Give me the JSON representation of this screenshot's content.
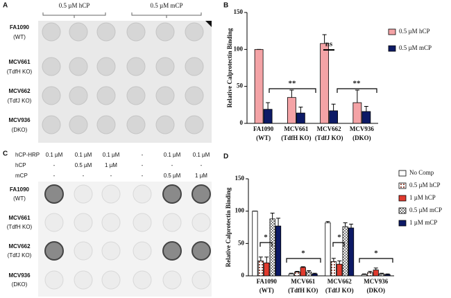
{
  "panel_a": {
    "label": "A",
    "groups": [
      "0.5 µM hCP",
      "0.5 µM mCP"
    ],
    "rows": [
      [
        "FA1090",
        "(WT)"
      ],
      [
        "MCV661",
        "(TdfH KO)"
      ],
      [
        "MCV662",
        "(TdfJ KO)"
      ],
      [
        "MCV936",
        "(DKO)"
      ]
    ]
  },
  "panel_c": {
    "label": "C",
    "conditions": [
      {
        "name": "hCP-HRP",
        "cells": [
          "0.1 µM",
          "0.1 µM",
          "0.1 µM",
          "-",
          "0.1 µM",
          "0.1 µM"
        ]
      },
      {
        "name": "hCP",
        "cells": [
          "-",
          "0.5 µM",
          "1 µM",
          "-",
          "-",
          "-"
        ]
      },
      {
        "name": "mCP",
        "cells": [
          "-",
          "-",
          "-",
          "-",
          "0.5 µM",
          "1 µM"
        ]
      }
    ],
    "rows": [
      [
        "FA1090",
        "(WT)"
      ],
      [
        "MCV661",
        "(TdfH KO)"
      ],
      [
        "MCV662",
        "(TdfJ KO)"
      ],
      [
        "MCV936",
        "(DKO)"
      ]
    ]
  },
  "chart_data": [
    {
      "type": "bar",
      "panel": "B",
      "ylabel": "Relative  Calprotectin Binding",
      "categories": [
        [
          "FA1090",
          "(WT)"
        ],
        [
          "MCV661",
          "(TdfH  KO)"
        ],
        [
          "MCV662",
          "(TdfJ KO)"
        ],
        [
          "MCV936",
          "(DKO)"
        ]
      ],
      "series": [
        {
          "name": "0.5 µM hCP",
          "color": "#f4a3a6",
          "values": [
            100,
            35,
            108,
            28
          ],
          "errors": [
            0,
            10,
            12,
            17
          ]
        },
        {
          "name": "0.5 µM mCP",
          "color": "#0d1a66",
          "values": [
            19,
            14,
            17,
            16
          ],
          "errors": [
            9,
            8,
            9,
            7
          ]
        }
      ],
      "annotations": [
        "ns",
        "**",
        "**"
      ],
      "ylim": [
        0,
        150
      ],
      "yticks": [
        0,
        50,
        100,
        150
      ],
      "legend": "right"
    },
    {
      "type": "bar",
      "panel": "D",
      "ylabel": "Relative  Calprotectin Binding",
      "categories": [
        [
          "FA1090",
          "(WT)"
        ],
        [
          "MCV661",
          "(TdfH KO)"
        ],
        [
          "MCV662",
          "(TdfJ  KO)"
        ],
        [
          "MCV936",
          "(DKO)"
        ]
      ],
      "series": [
        {
          "name": "No Comp",
          "color": "#ffffff",
          "values": [
            100,
            3,
            82,
            2
          ],
          "errors": [
            0,
            1,
            2,
            1
          ]
        },
        {
          "name": "0.5 µM hCP",
          "color": "#8b3a2a",
          "pattern": "dots",
          "values": [
            23,
            6,
            22,
            5
          ],
          "errors": [
            6,
            1,
            5,
            2
          ]
        },
        {
          "name": "1 µM hCP",
          "color": "#e03a2e",
          "values": [
            20,
            13,
            18,
            9
          ],
          "errors": [
            9,
            1,
            5,
            3
          ]
        },
        {
          "name": "0.5 µM mCP",
          "color": "#7a7a7a",
          "pattern": "checker",
          "values": [
            88,
            6,
            76,
            3
          ],
          "errors": [
            9,
            2,
            6,
            1
          ]
        },
        {
          "name": "1 µM mCP",
          "color": "#0d1a66",
          "values": [
            77,
            3,
            74,
            2
          ],
          "errors": [
            12,
            1,
            6,
            1
          ]
        }
      ],
      "annotations": [
        "*",
        "*",
        "*",
        "*"
      ],
      "ylim": [
        0,
        150
      ],
      "yticks": [
        0,
        50,
        100,
        150
      ],
      "legend": "right"
    }
  ]
}
